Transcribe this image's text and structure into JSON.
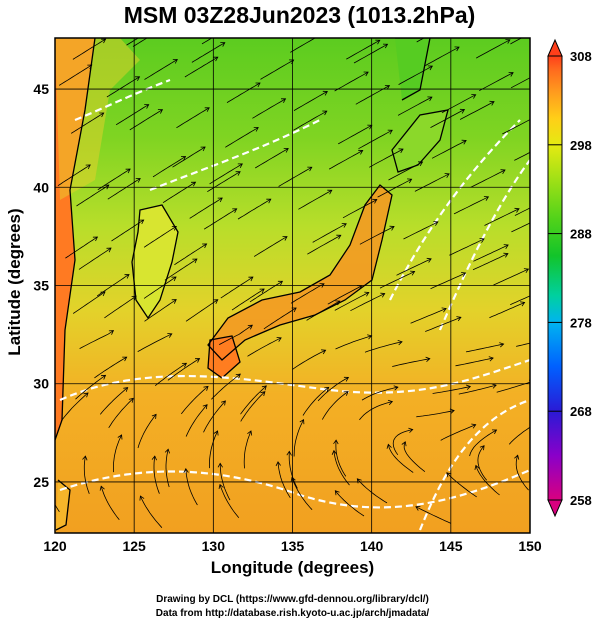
{
  "title": "MSM 03Z28Jun2023 (1013.2hPa)",
  "chart_data": {
    "type": "heatmap",
    "title": "MSM 03Z28Jun2023 (1013.2hPa)",
    "xlabel": "Longitude (degrees)",
    "ylabel": "Latitude  (degrees)",
    "xlim": [
      120,
      150
    ],
    "ylim": [
      22.4,
      47.6
    ],
    "x_ticks": [
      "120",
      "125",
      "130",
      "135",
      "140",
      "145",
      "150"
    ],
    "y_ticks": [
      "25",
      "30",
      "35",
      "40",
      "45"
    ],
    "x_tick_values": [
      120,
      125,
      130,
      135,
      140,
      145,
      150
    ],
    "y_tick_values": [
      25,
      30,
      35,
      40,
      45
    ],
    "colorbar": {
      "ticks": [
        "308",
        "298",
        "288",
        "278",
        "268",
        "258"
      ],
      "tick_values": [
        308,
        298,
        288,
        278,
        268,
        258
      ],
      "range": [
        258,
        308
      ],
      "colors": [
        "#d9007f",
        "#8a00c9",
        "#2a1ad6",
        "#0060ff",
        "#00b4f0",
        "#00d0a0",
        "#12c42a",
        "#4fd21a",
        "#9ee016",
        "#e5ea12",
        "#ffce18",
        "#ff9a1e",
        "#ff6a1e",
        "#ff3f1a"
      ]
    },
    "grid": true,
    "overlay": "streamlines and white isotherm contours over temperature shading"
  },
  "credits": {
    "line1": "Drawing by DCL (https://www.gfd-dennou.org/library/dcl/)",
    "line2": "Data from http://database.rish.kyoto-u.ac.jp/arch/jmadata/"
  }
}
